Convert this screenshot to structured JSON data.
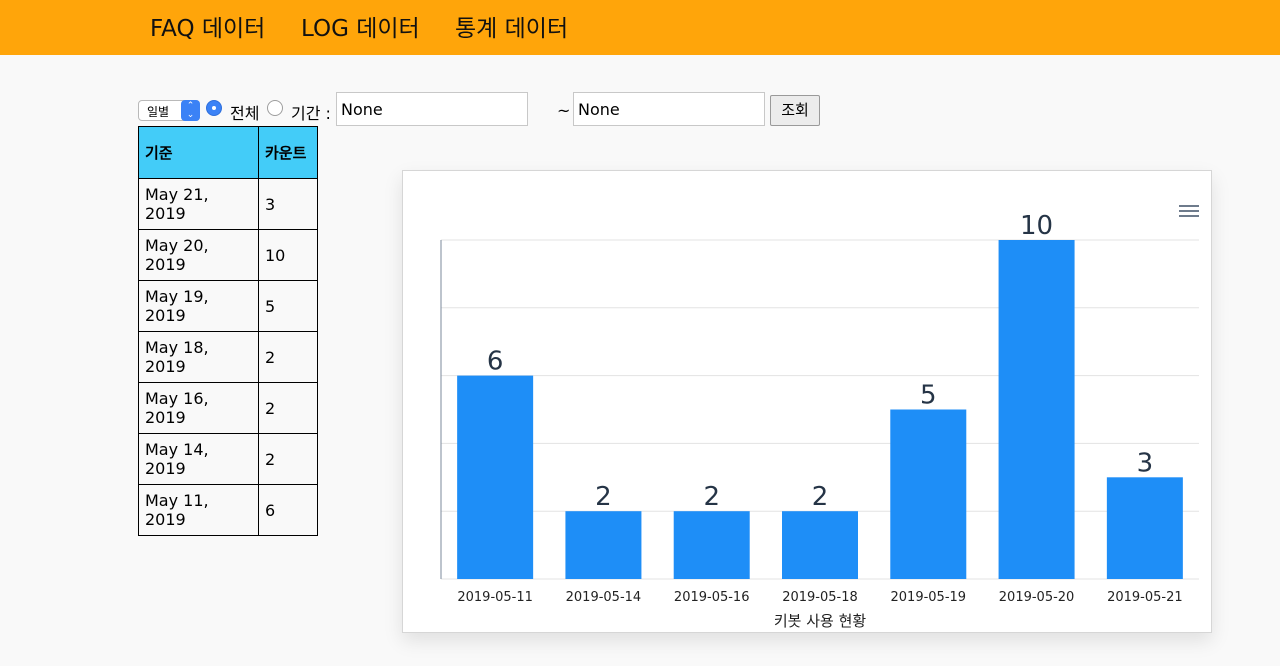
{
  "nav": {
    "items": [
      {
        "label": "FAQ 데이터",
        "left": 150
      },
      {
        "label": "LOG 데이터",
        "left": 301
      },
      {
        "label": "통계 데이터",
        "left": 455
      }
    ]
  },
  "controls": {
    "period_select": "일별",
    "radio_all_label": "전체",
    "radio_range_label": "기간 :",
    "start_value": "None",
    "tilde": "~",
    "end_value": "None",
    "search_button": "조회"
  },
  "table": {
    "headers": [
      "기준",
      "카운트"
    ],
    "rows": [
      [
        "May 21, 2019",
        "3"
      ],
      [
        "May 20, 2019",
        "10"
      ],
      [
        "May 19, 2019",
        "5"
      ],
      [
        "May 18, 2019",
        "2"
      ],
      [
        "May 16, 2019",
        "2"
      ],
      [
        "May 14, 2019",
        "2"
      ],
      [
        "May 11, 2019",
        "6"
      ]
    ]
  },
  "chart_data": {
    "type": "bar",
    "categories": [
      "2019-05-11",
      "2019-05-14",
      "2019-05-16",
      "2019-05-18",
      "2019-05-19",
      "2019-05-20",
      "2019-05-21"
    ],
    "values": [
      6,
      2,
      2,
      2,
      5,
      10,
      3
    ],
    "xlabel": "키봇 사용 현황",
    "ylabel": "",
    "ylim": [
      0,
      10
    ],
    "grid": true,
    "bar_color": "#1e8ef7"
  },
  "colors": {
    "topbar": "#ffa50a",
    "table_header": "#43ccf8",
    "radio_selected": "#3b82f6"
  }
}
